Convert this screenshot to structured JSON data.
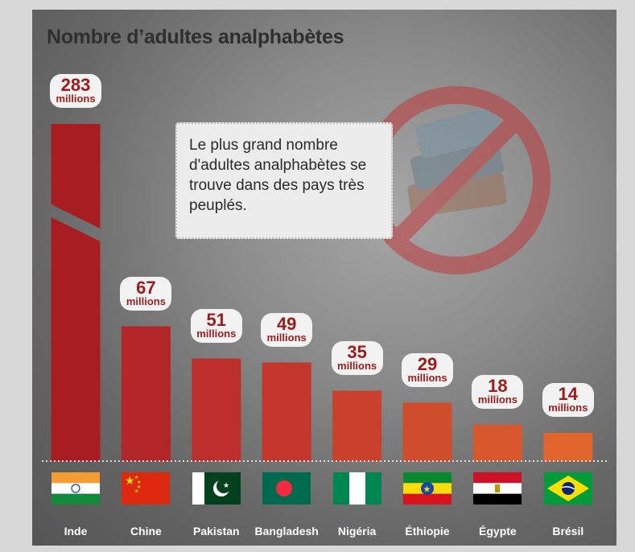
{
  "title": "Nombre d’adultes analphabètes",
  "note": "Le plus grand nombre d'adultes analphabètes se trouve dans des pays très peuplés.",
  "colors": {
    "bar_colors": [
      "#a71d22",
      "#b2262a",
      "#bc2f2c",
      "#c2362c",
      "#c9412c",
      "#d04d2c",
      "#d8572c",
      "#e1652c"
    ],
    "label_text": "#9e1b1b",
    "panel": "#777777",
    "note_bg": "#ececec"
  },
  "chart_data": {
    "type": "bar",
    "title": "Nombre d’adultes analphabètes",
    "categories": [
      "Inde",
      "Chine",
      "Pakistan",
      "Bangladesh",
      "Nigéria",
      "Éthiopie",
      "Égypte",
      "Brésil"
    ],
    "values": [
      283,
      67,
      51,
      49,
      35,
      29,
      18,
      14
    ],
    "value_labels": [
      "283",
      "67",
      "51",
      "49",
      "35",
      "29",
      "18",
      "14"
    ],
    "unit_label": "millions",
    "broken_axis_category": "Inde",
    "xlabel": "",
    "ylabel": "",
    "legend": "none",
    "grid": false,
    "flags": [
      "india-flag",
      "china-flag",
      "pakistan-flag",
      "bangladesh-flag",
      "nigeria-flag",
      "ethiopia-flag",
      "egypt-flag",
      "brazil-flag"
    ]
  },
  "decor": {
    "icon": "no-books-icon"
  }
}
